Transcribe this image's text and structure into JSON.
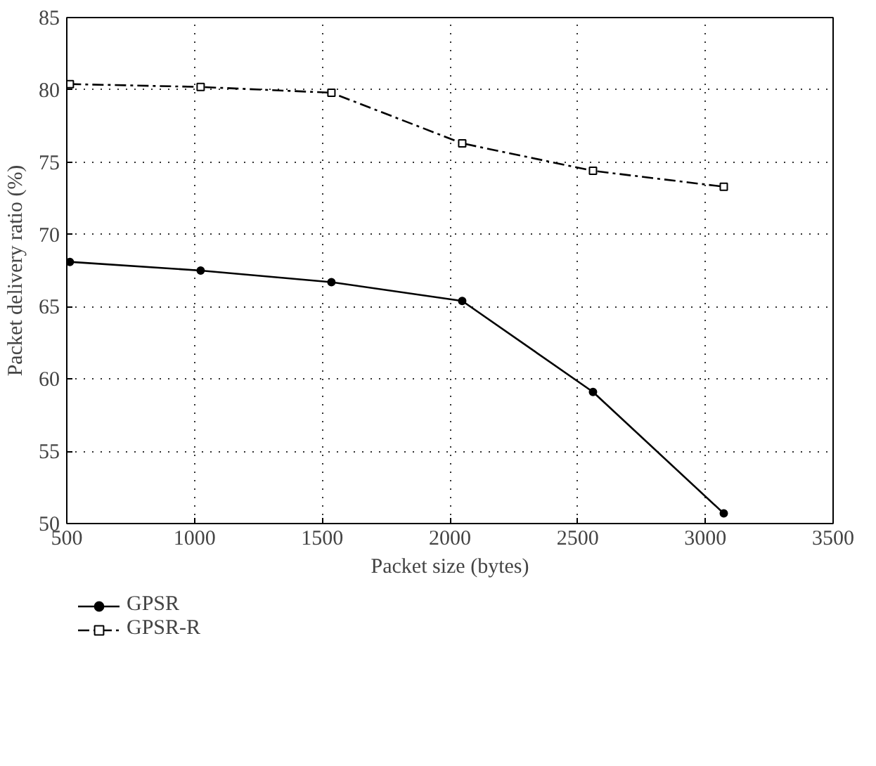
{
  "chart_data": {
    "type": "line",
    "xlabel": "Packet size (bytes)",
    "ylabel": "Packet delivery ratio (%)",
    "x": [
      512,
      1024,
      1536,
      2048,
      2560,
      3072
    ],
    "series": [
      {
        "name": "GPSR",
        "color": "#000000",
        "marker": "circle",
        "line_style": "solid",
        "values": [
          68.1,
          67.5,
          66.7,
          65.4,
          59.1,
          50.7
        ]
      },
      {
        "name": "GPSR-R",
        "color": "#000000",
        "marker": "square",
        "line_style": "dashed",
        "values": [
          80.4,
          80.2,
          79.8,
          76.3,
          74.4,
          73.3
        ]
      }
    ],
    "xlim": [
      500,
      3500
    ],
    "xticks": [
      500,
      1000,
      1500,
      2000,
      2500,
      3000,
      3500
    ],
    "ylim": [
      50,
      85
    ],
    "yticks": [
      50,
      55,
      60,
      65,
      70,
      75,
      80,
      85
    ],
    "grid": true,
    "legend": "bottom left"
  }
}
